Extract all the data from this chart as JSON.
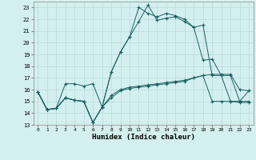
{
  "xlabel": "Humidex (Indice chaleur)",
  "bg_color": "#d4efef",
  "grid_color": "#b8dada",
  "line_color": "#1a6060",
  "xlim": [
    -0.5,
    23.5
  ],
  "ylim": [
    13,
    23.5
  ],
  "xticks": [
    0,
    1,
    2,
    3,
    4,
    5,
    6,
    7,
    8,
    9,
    10,
    11,
    12,
    13,
    14,
    15,
    16,
    17,
    18,
    19,
    20,
    21,
    22,
    23
  ],
  "yticks": [
    13,
    14,
    15,
    16,
    17,
    18,
    19,
    20,
    21,
    22,
    23
  ],
  "series": [
    [
      15.8,
      14.3,
      14.4,
      16.5,
      16.5,
      16.3,
      16.5,
      14.5,
      15.3,
      15.9,
      16.1,
      16.2,
      16.3,
      16.4,
      16.5,
      16.6,
      16.7,
      17.0,
      17.2,
      17.3,
      17.3,
      17.3,
      16.0,
      15.9
    ],
    [
      15.8,
      14.3,
      14.4,
      15.3,
      15.1,
      15.0,
      13.2,
      14.5,
      17.5,
      19.2,
      20.5,
      23.0,
      22.5,
      22.2,
      22.5,
      22.3,
      22.0,
      21.3,
      21.5,
      17.2,
      17.2,
      15.0,
      14.9,
      14.9
    ],
    [
      15.8,
      14.3,
      14.4,
      15.3,
      15.1,
      15.0,
      13.2,
      14.5,
      17.5,
      19.2,
      20.5,
      21.8,
      23.2,
      21.9,
      22.1,
      22.2,
      21.8,
      21.3,
      18.5,
      18.6,
      17.2,
      17.2,
      15.0,
      15.0
    ],
    [
      15.8,
      14.3,
      14.4,
      15.3,
      15.1,
      15.0,
      13.2,
      14.5,
      15.5,
      16.0,
      16.2,
      16.3,
      16.4,
      16.5,
      16.6,
      16.7,
      16.8,
      17.0,
      17.2,
      15.0,
      15.0,
      15.0,
      15.0,
      15.9
    ]
  ]
}
